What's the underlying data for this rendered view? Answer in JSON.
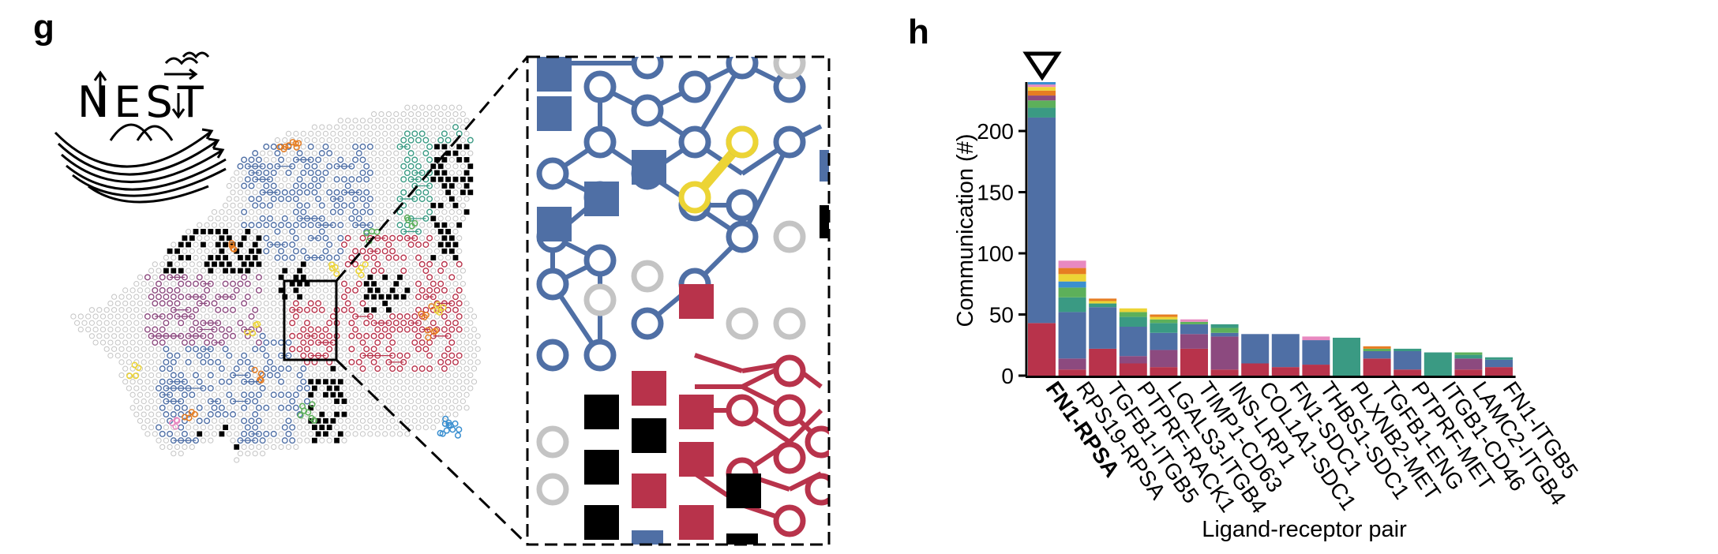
{
  "panels": {
    "left_letter": "g",
    "right_letter": "h"
  },
  "logo": {
    "text": "NEST"
  },
  "colors": {
    "blue": "#4f6fa5",
    "red": "#b8334b",
    "gray": "#c4c4c4",
    "yellow": "#ecd435",
    "teal": "#3a9a83",
    "purple": "#8c4a7f",
    "orange": "#e67d22",
    "green": "#5db05a",
    "black": "#000000"
  },
  "chart_data": {
    "type": "bar",
    "stacked": true,
    "title": "",
    "xlabel": "Ligand-receptor pair",
    "ylabel": "Communication (#)",
    "ylim": [
      0,
      240
    ],
    "yticks": [
      0,
      50,
      100,
      150,
      200
    ],
    "highlight_marker": "downward-triangle above first bar",
    "categories": [
      "FN1-RPSA",
      "RPS19-RPSA",
      "TGFB1-ITGB5",
      "PTPRF-RACK1",
      "LGALS3-ITGB4",
      "TIMP1-CD63",
      "INS-LRP1",
      "COL1A1-SDC1",
      "FN1-SDC1",
      "THBS1-SDC1",
      "PLXNB2-MET",
      "TGFB1-ENG",
      "PTPRF-MET",
      "ITGB1-CD46",
      "LAMC2-ITGB4",
      "FN1-ITGB5"
    ],
    "highlighted_category": "FN1-RPSA",
    "segments": [
      [
        [
          43,
          "#b8334b"
        ],
        [
          168,
          "#4f6fa5"
        ],
        [
          8,
          "#3a9a83"
        ],
        [
          6,
          "#5db05a"
        ],
        [
          4,
          "#8c4a7f"
        ],
        [
          4,
          "#e67d22"
        ],
        [
          3,
          "#ecd435"
        ],
        [
          2,
          "#e889c0"
        ],
        [
          2,
          "#3a8fd0"
        ]
      ],
      [
        [
          5,
          "#b8334b"
        ],
        [
          9,
          "#8c4a7f"
        ],
        [
          38,
          "#4f6fa5"
        ],
        [
          12,
          "#3a9a83"
        ],
        [
          8,
          "#5db05a"
        ],
        [
          5,
          "#3a8fd0"
        ],
        [
          6,
          "#ecd435"
        ],
        [
          5,
          "#e67d22"
        ],
        [
          6,
          "#e889c0"
        ]
      ],
      [
        [
          22,
          "#b8334b"
        ],
        [
          34,
          "#4f6fa5"
        ],
        [
          3,
          "#3a9a83"
        ],
        [
          2,
          "#ecd435"
        ],
        [
          2,
          "#e67d22"
        ]
      ],
      [
        [
          10,
          "#b8334b"
        ],
        [
          6,
          "#8c4a7f"
        ],
        [
          24,
          "#4f6fa5"
        ],
        [
          8,
          "#3a9a83"
        ],
        [
          4,
          "#5db05a"
        ],
        [
          3,
          "#ecd435"
        ]
      ],
      [
        [
          7,
          "#b8334b"
        ],
        [
          14,
          "#8c4a7f"
        ],
        [
          14,
          "#4f6fa5"
        ],
        [
          8,
          "#3a9a83"
        ],
        [
          3,
          "#5db05a"
        ],
        [
          2,
          "#ecd435"
        ],
        [
          2,
          "#e67d22"
        ]
      ],
      [
        [
          22,
          "#b8334b"
        ],
        [
          12,
          "#8c4a7f"
        ],
        [
          8,
          "#4f6fa5"
        ],
        [
          2,
          "#5db05a"
        ],
        [
          2,
          "#e889c0"
        ]
      ],
      [
        [
          5,
          "#b8334b"
        ],
        [
          27,
          "#8c4a7f"
        ],
        [
          3,
          "#4f6fa5"
        ],
        [
          4,
          "#5db05a"
        ],
        [
          3,
          "#3a9a83"
        ]
      ],
      [
        [
          10,
          "#b8334b"
        ],
        [
          24,
          "#4f6fa5"
        ]
      ],
      [
        [
          7,
          "#b8334b"
        ],
        [
          27,
          "#4f6fa5"
        ]
      ],
      [
        [
          9,
          "#b8334b"
        ],
        [
          20,
          "#4f6fa5"
        ],
        [
          3,
          "#e889c0"
        ]
      ],
      [
        [
          31,
          "#3a9a83"
        ]
      ],
      [
        [
          14,
          "#b8334b"
        ],
        [
          6,
          "#4f6fa5"
        ],
        [
          2,
          "#5db05a"
        ],
        [
          2,
          "#e67d22"
        ]
      ],
      [
        [
          5,
          "#b8334b"
        ],
        [
          15,
          "#4f6fa5"
        ],
        [
          2,
          "#3a9a83"
        ]
      ],
      [
        [
          19,
          "#3a9a83"
        ]
      ],
      [
        [
          5,
          "#b8334b"
        ],
        [
          9,
          "#8c4a7f"
        ],
        [
          3,
          "#3a9a83"
        ],
        [
          2,
          "#5db05a"
        ]
      ],
      [
        [
          7,
          "#b8334b"
        ],
        [
          6,
          "#4f6fa5"
        ],
        [
          2,
          "#3a9a83"
        ]
      ]
    ]
  }
}
